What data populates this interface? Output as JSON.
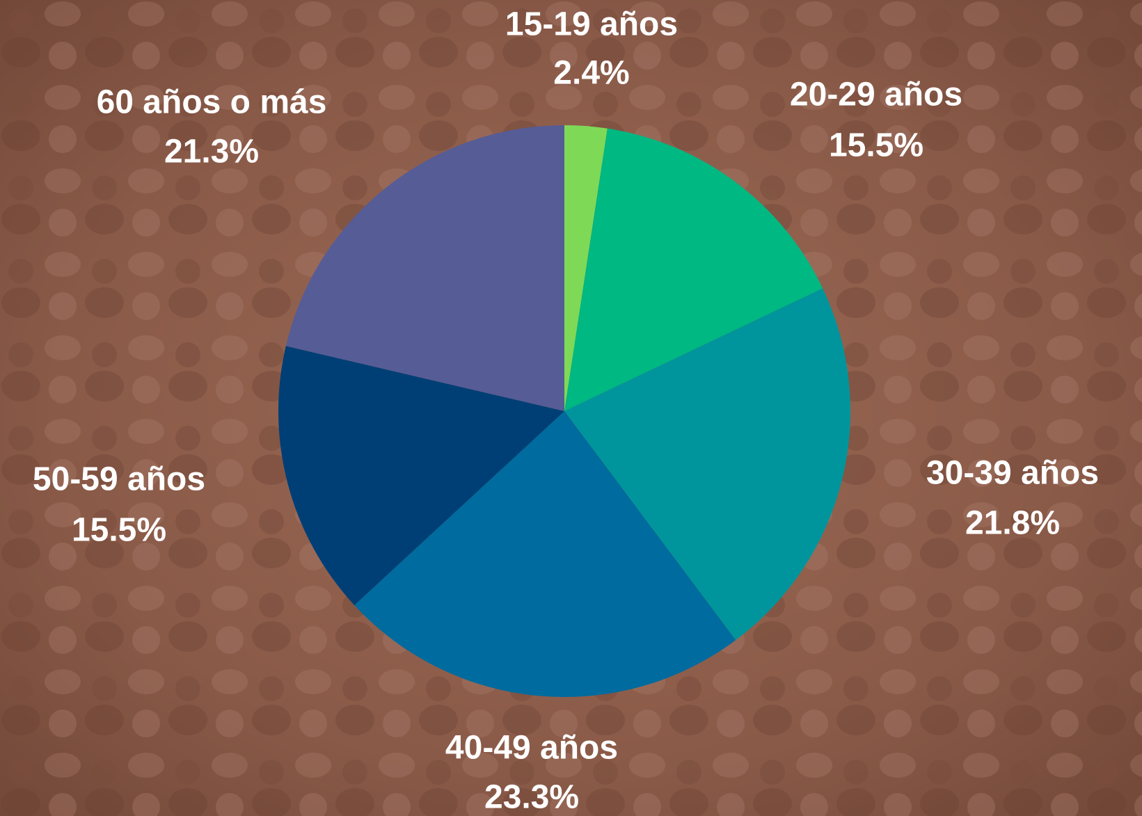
{
  "chart_data": {
    "type": "pie",
    "categories": [
      "15-19 años",
      "20-29 años",
      "30-39 años",
      "40-49 años",
      "50-59 años",
      "60 años o más"
    ],
    "values": [
      2.4,
      15.5,
      21.8,
      23.3,
      15.5,
      21.3
    ],
    "value_labels": [
      "2.4%",
      "15.5%",
      "21.8%",
      "23.3%",
      "15.5%",
      "21.3%"
    ],
    "colors": [
      "#7ed957",
      "#00b882",
      "#00959c",
      "#006b9e",
      "#003f75",
      "#565c96"
    ]
  }
}
